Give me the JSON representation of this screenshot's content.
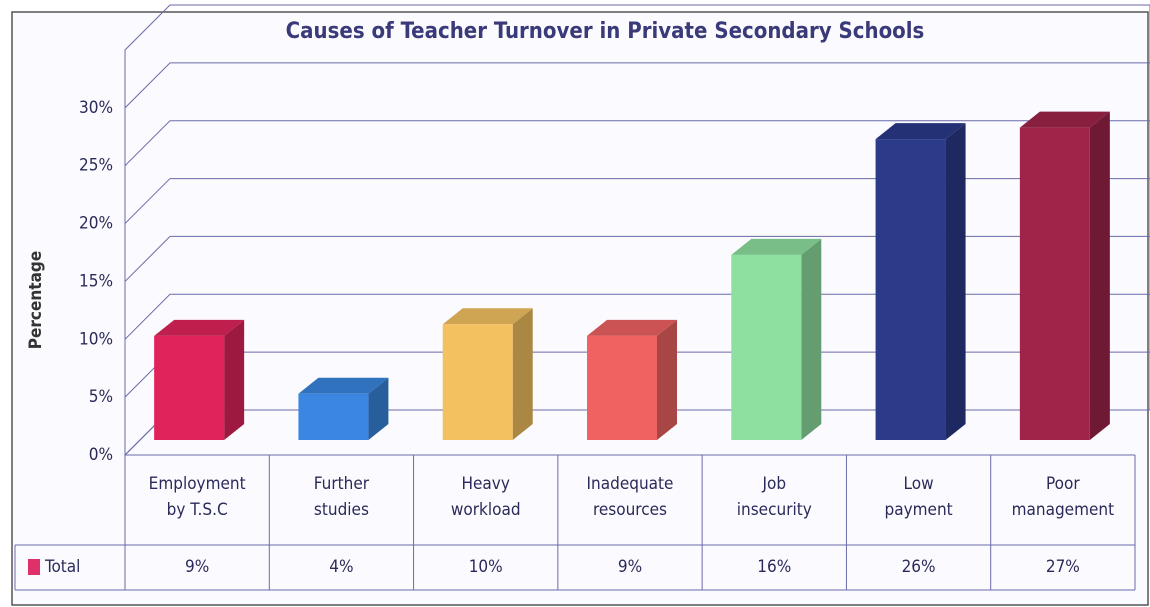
{
  "chart_data": {
    "type": "bar3d",
    "title": "Causes of Teacher Turnover in Private Secondary Schools",
    "y_label": "Percentage",
    "categories": [
      "Employment\nby T.S.C",
      "Further\nstudies",
      "Heavy\nworkload",
      "Inadequate\nresources",
      "Job\ninsecurity",
      "Low\npayment",
      "Poor\nmanagement"
    ],
    "series": [
      {
        "name": "Total",
        "color": "#e0306a",
        "colors": [
          "#e0245a",
          "#3a86e0",
          "#f3c160",
          "#f06262",
          "#8ee0a0",
          "#2c3a8a",
          "#a0244a"
        ],
        "values": [
          9,
          4,
          10,
          9,
          16,
          26,
          27
        ],
        "value_labels": [
          "9%",
          "4%",
          "10%",
          "9%",
          "16%",
          "26%",
          "27%"
        ]
      }
    ],
    "ylim": [
      0,
      35
    ],
    "yticks": [
      {
        "value": 0,
        "label": "0%"
      },
      {
        "value": 5,
        "label": "5%"
      },
      {
        "value": 10,
        "label": "10%"
      },
      {
        "value": 15,
        "label": "15%"
      },
      {
        "value": 20,
        "label": "20%"
      },
      {
        "value": 25,
        "label": "25%"
      },
      {
        "value": 30,
        "label": "30%"
      }
    ],
    "grid": true,
    "data_table": true
  }
}
